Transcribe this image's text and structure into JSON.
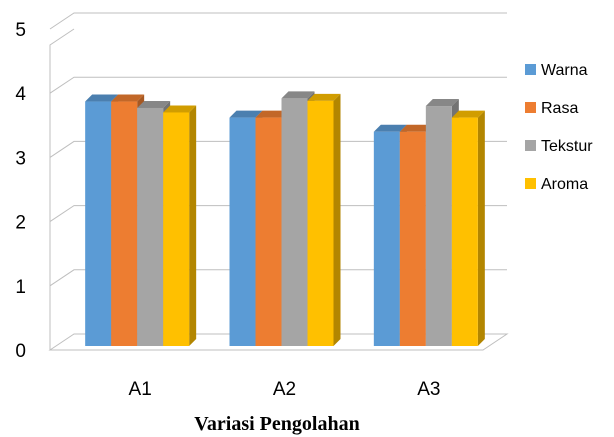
{
  "chart_data": {
    "type": "bar",
    "title": "",
    "xlabel": "Variasi Pengolahan",
    "ylabel": "",
    "categories": [
      "A1",
      "A2",
      "A3"
    ],
    "series": [
      {
        "name": "Warna",
        "values": [
          3.87,
          3.62,
          3.4
        ],
        "color": "#5B9BD5"
      },
      {
        "name": "Rasa",
        "values": [
          3.87,
          3.62,
          3.4
        ],
        "color": "#ED7D31"
      },
      {
        "name": "Tekstur",
        "values": [
          3.77,
          3.92,
          3.8
        ],
        "color": "#A5A5A5"
      },
      {
        "name": "Aroma",
        "values": [
          3.7,
          3.88,
          3.62
        ],
        "color": "#FFC000"
      }
    ],
    "ylim": [
      0,
      5
    ],
    "yticks": [
      0,
      1,
      2,
      3,
      4,
      5
    ],
    "grid": true,
    "legend": "right",
    "style": "3d-clustered-column"
  }
}
